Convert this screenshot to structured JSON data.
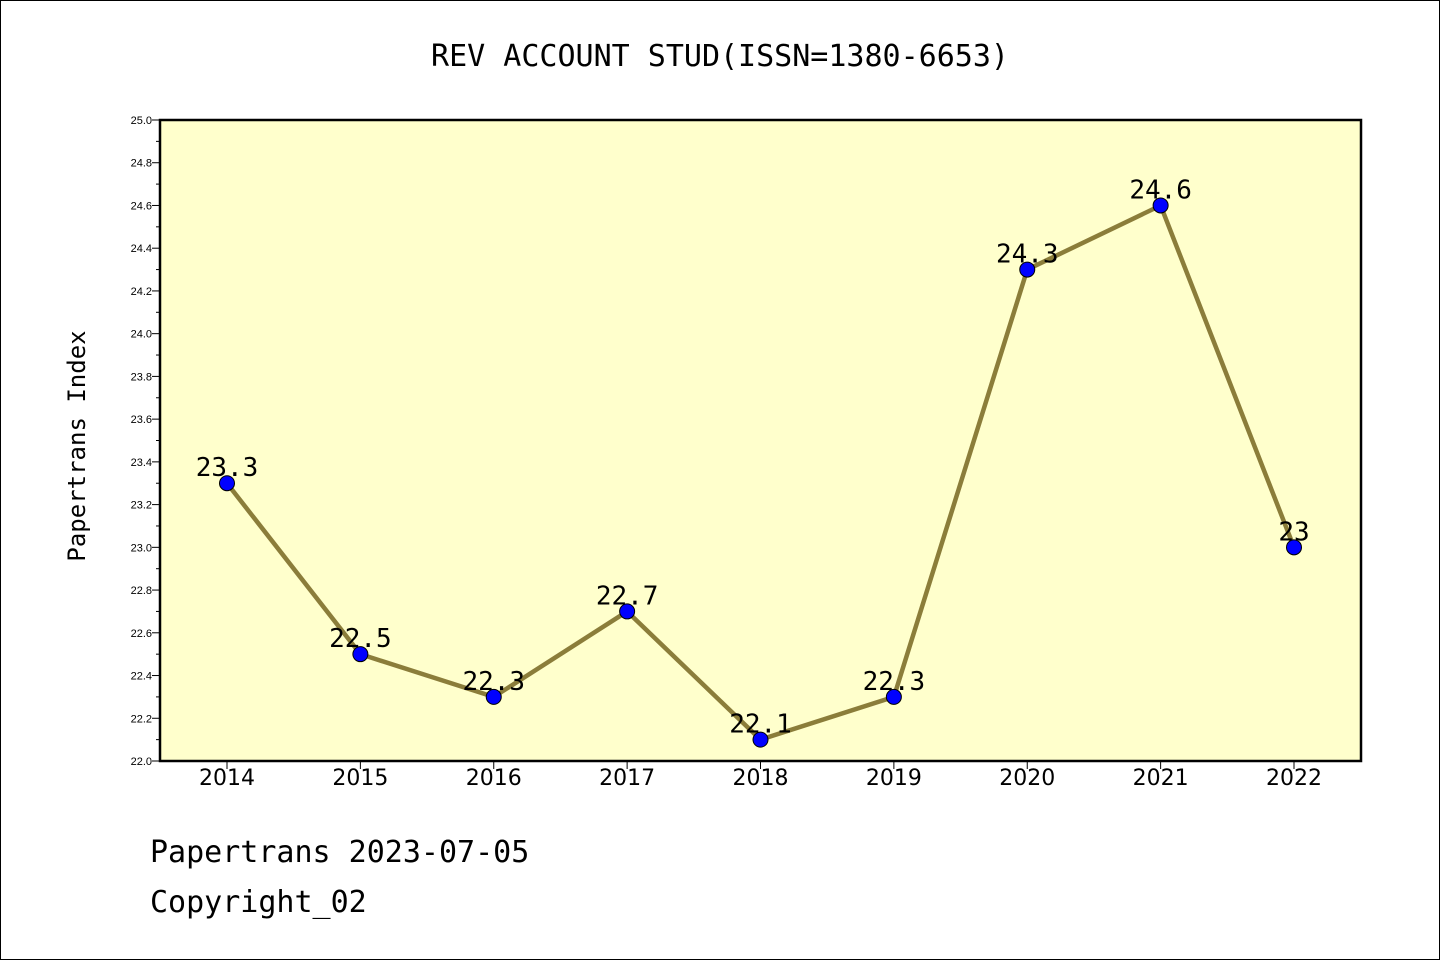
{
  "footer": {
    "line1": "Papertrans 2023-07-05",
    "line2": "Copyright_02"
  },
  "colors": {
    "plot_background": "#ffffcc",
    "line": "#8b7d3a",
    "marker": "#0000ff"
  },
  "chart_data": {
    "type": "line",
    "title": "REV ACCOUNT STUD(ISSN=1380-6653)",
    "xlabel": "",
    "ylabel": "Papertrans Index",
    "categories": [
      "2014",
      "2015",
      "2016",
      "2017",
      "2018",
      "2019",
      "2020",
      "2021",
      "2022"
    ],
    "series": [
      {
        "values": [
          23.3,
          22.5,
          22.3,
          22.7,
          22.1,
          22.3,
          24.3,
          24.6,
          23.0
        ],
        "labels": [
          "23.3",
          "22.5",
          "22.3",
          "22.7",
          "22.1",
          "22.3",
          "24.3",
          "24.6",
          "23"
        ]
      }
    ],
    "ylim": [
      22.0,
      25.0
    ],
    "yticks": [
      "22.0",
      "22.2",
      "22.4",
      "22.6",
      "22.8",
      "23.0",
      "23.2",
      "23.4",
      "23.6",
      "23.8",
      "24.0",
      "24.2",
      "24.4",
      "24.6",
      "24.8",
      "25.0"
    ],
    "grid": false,
    "legend": "none"
  }
}
